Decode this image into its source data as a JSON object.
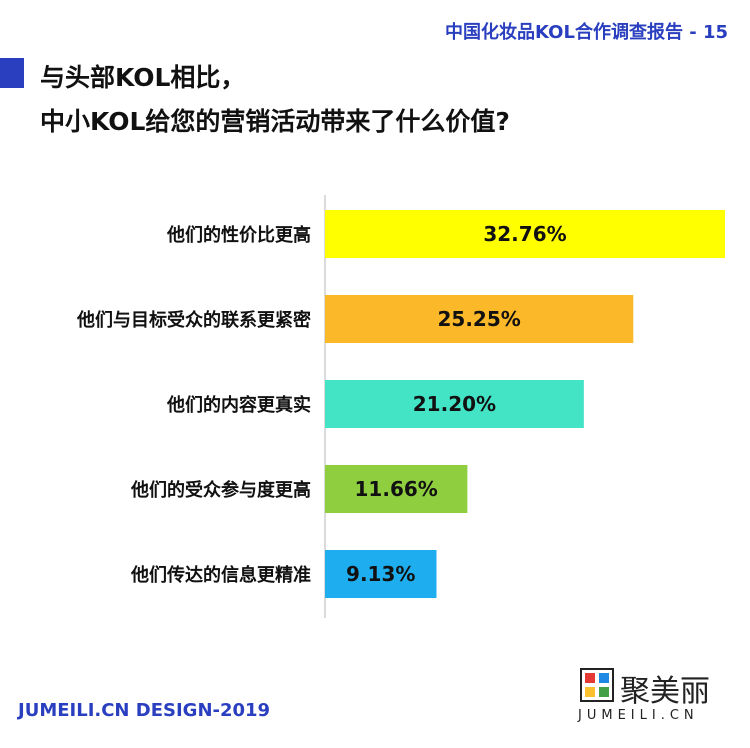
{
  "header": {
    "report_title": "中国化妆品KOL合作调查报告 - 15"
  },
  "title": {
    "line1": "与头部KOL相比，",
    "line2": "中小KOL给您的营销活动带来了什么价值?"
  },
  "footer": {
    "credit": "JUMEILI.CN DESIGN-2019"
  },
  "brand": {
    "name": "聚美丽",
    "domain": "JUMEILI.CN"
  },
  "chart_data": {
    "type": "bar",
    "orientation": "horizontal",
    "categories": [
      "他们的性价比更高",
      "他们与目标受众的联系更紧密",
      "他们的内容更真实",
      "他们的受众参与度更高",
      "他们传达的信息更精准"
    ],
    "values": [
      32.76,
      25.25,
      21.2,
      11.66,
      9.13
    ],
    "value_labels": [
      "32.76%",
      "25.25%",
      "21.20%",
      "11.66%",
      "9.13%"
    ],
    "colors": [
      "#ffff00",
      "#fbb828",
      "#43e3c6",
      "#8fcf3f",
      "#1eaef0"
    ],
    "xlim": [
      0,
      32.76
    ],
    "grid": false,
    "legend": "none"
  }
}
